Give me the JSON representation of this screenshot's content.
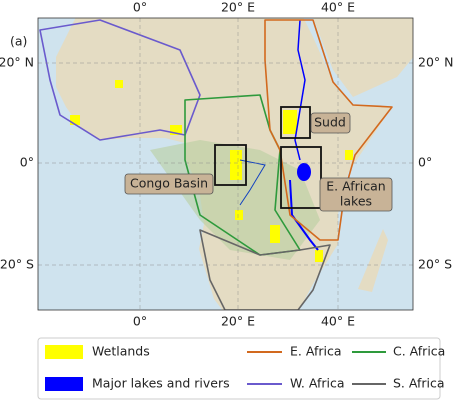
{
  "panel_label": "(a)",
  "axes": {
    "x_ticks": [
      "0°",
      "20° E",
      "40° E"
    ],
    "y_ticks": [
      "20° N",
      "0°",
      "20° S"
    ]
  },
  "annotations": {
    "sudd": "Sudd",
    "congo": "Congo Basin",
    "east_african_lakes": [
      "E. African",
      "lakes"
    ]
  },
  "legend": {
    "wetlands": "Wetlands",
    "lakes_rivers": "Major lakes and rivers",
    "east_africa": "E. Africa",
    "west_africa": "W. Africa",
    "central_africa": "C. Africa",
    "southern_africa": "S. Africa"
  }
}
